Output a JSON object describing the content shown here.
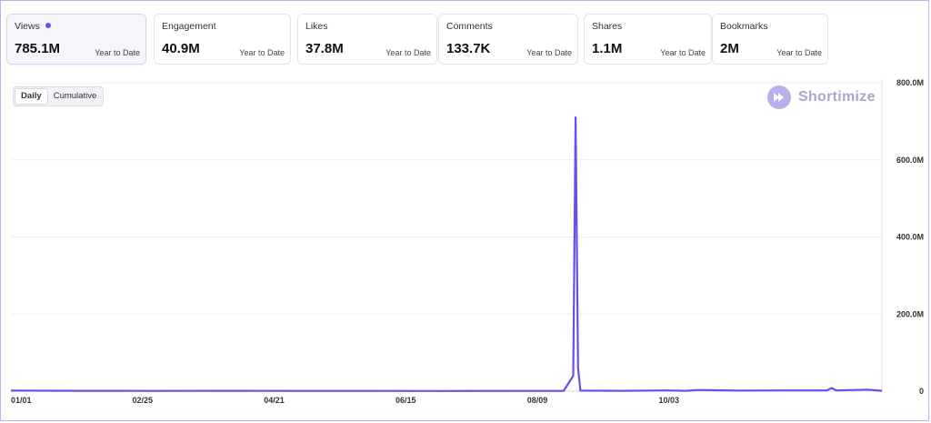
{
  "metrics": [
    {
      "label": "Views",
      "value": "785.1M",
      "period": "Year to Date",
      "active": true
    },
    {
      "label": "Engagement",
      "value": "40.9M",
      "period": "Year to Date",
      "active": false
    },
    {
      "label": "Likes",
      "value": "37.8M",
      "period": "Year to Date",
      "active": false
    },
    {
      "label": "Comments",
      "value": "133.7K",
      "period": "Year to Date",
      "active": false
    },
    {
      "label": "Shares",
      "value": "1.1M",
      "period": "Year to Date",
      "active": false
    },
    {
      "label": "Bookmarks",
      "value": "2M",
      "period": "Year to Date",
      "active": false
    }
  ],
  "toggle": {
    "daily": "Daily",
    "cumulative": "Cumulative",
    "selected": "Daily"
  },
  "brand": {
    "name": "Shortimize"
  },
  "colors": {
    "accent": "#6d4dea",
    "grid": "#efeff3",
    "frame": "#b9b3ee"
  },
  "chart_data": {
    "type": "line",
    "title": "",
    "xlabel": "",
    "ylabel": "",
    "x_tick_labels": [
      "01/01",
      "02/25",
      "04/21",
      "06/15",
      "08/09",
      "10/03"
    ],
    "y_tick_labels": [
      "800.0M",
      "600.0M",
      "400.0M",
      "200.0M",
      "0"
    ],
    "ylim": [
      0,
      800000000
    ],
    "grid": true,
    "series": [
      {
        "points": [
          [
            "01/01",
            1500000
          ],
          [
            "02/01",
            1000000
          ],
          [
            "03/01",
            800000
          ],
          [
            "04/01",
            900000
          ],
          [
            "05/01",
            600000
          ],
          [
            "06/01",
            700000
          ],
          [
            "07/01",
            500000
          ],
          [
            "08/01",
            800000
          ],
          [
            "08/20",
            1000000
          ],
          [
            "08/24",
            40000000
          ],
          [
            "08/25",
            710000000
          ],
          [
            "08/26",
            60000000
          ],
          [
            "08/27",
            1500000
          ],
          [
            "09/15",
            1000000
          ],
          [
            "10/01",
            2000000
          ],
          [
            "10/10",
            1000000
          ],
          [
            "10/15",
            3000000
          ],
          [
            "11/01",
            1500000
          ],
          [
            "11/20",
            2000000
          ],
          [
            "12/08",
            2000000
          ],
          [
            "12/10",
            8000000
          ],
          [
            "12/12",
            2000000
          ],
          [
            "12/20",
            3000000
          ],
          [
            "12/25",
            4000000
          ],
          [
            "12/31",
            1000000
          ]
        ]
      }
    ]
  }
}
